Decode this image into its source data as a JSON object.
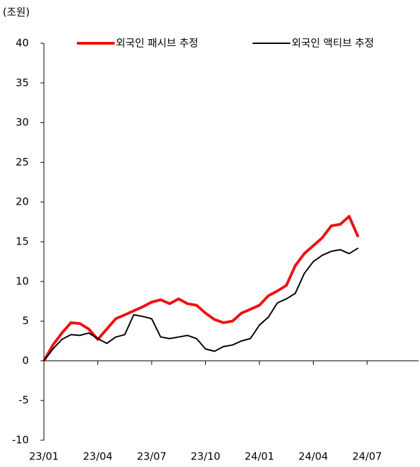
{
  "chart_data": {
    "type": "line",
    "y_label": "(조원)",
    "categories": [
      "23/01",
      null,
      null,
      null,
      null,
      null,
      "23/04",
      null,
      null,
      null,
      null,
      null,
      "23/07",
      null,
      null,
      null,
      null,
      null,
      "23/10",
      null,
      null,
      null,
      null,
      null,
      "24/01",
      null,
      null,
      null,
      null,
      null,
      "24/04",
      null,
      null,
      null,
      null,
      null,
      "24/07"
    ],
    "series": [
      {
        "name": "외국인 패시브 추정",
        "color": "#ee1111",
        "width": 4,
        "values": [
          0,
          2,
          3.5,
          4.8,
          4.7,
          4.0,
          2.7,
          4.0,
          5.3,
          5.8,
          6.3,
          6.8,
          7.4,
          7.7,
          7.2,
          7.8,
          7.2,
          7.0,
          6.0,
          5.2,
          4.8,
          5.0,
          6.0,
          6.5,
          7.0,
          8.2,
          8.8,
          9.5,
          12.0,
          13.5,
          14.5,
          15.5,
          17.0,
          17.2,
          18.2,
          15.6,
          null
        ]
      },
      {
        "name": "외국인 액티브 추정",
        "color": "#000000",
        "width": 2,
        "values": [
          0,
          1.5,
          2.7,
          3.3,
          3.2,
          3.5,
          2.8,
          2.2,
          3.0,
          3.3,
          5.8,
          5.6,
          5.3,
          3.0,
          2.8,
          3.0,
          3.2,
          2.8,
          1.5,
          1.2,
          1.8,
          2.0,
          2.5,
          2.8,
          4.5,
          5.5,
          7.3,
          7.8,
          8.5,
          11.0,
          12.5,
          13.3,
          13.8,
          14.0,
          13.5,
          14.2,
          null
        ]
      }
    ],
    "ylim": [
      -10,
      40
    ],
    "yticks": [
      -10,
      -5,
      0,
      5,
      10,
      15,
      20,
      25,
      30,
      35,
      40
    ],
    "legend": "top"
  }
}
